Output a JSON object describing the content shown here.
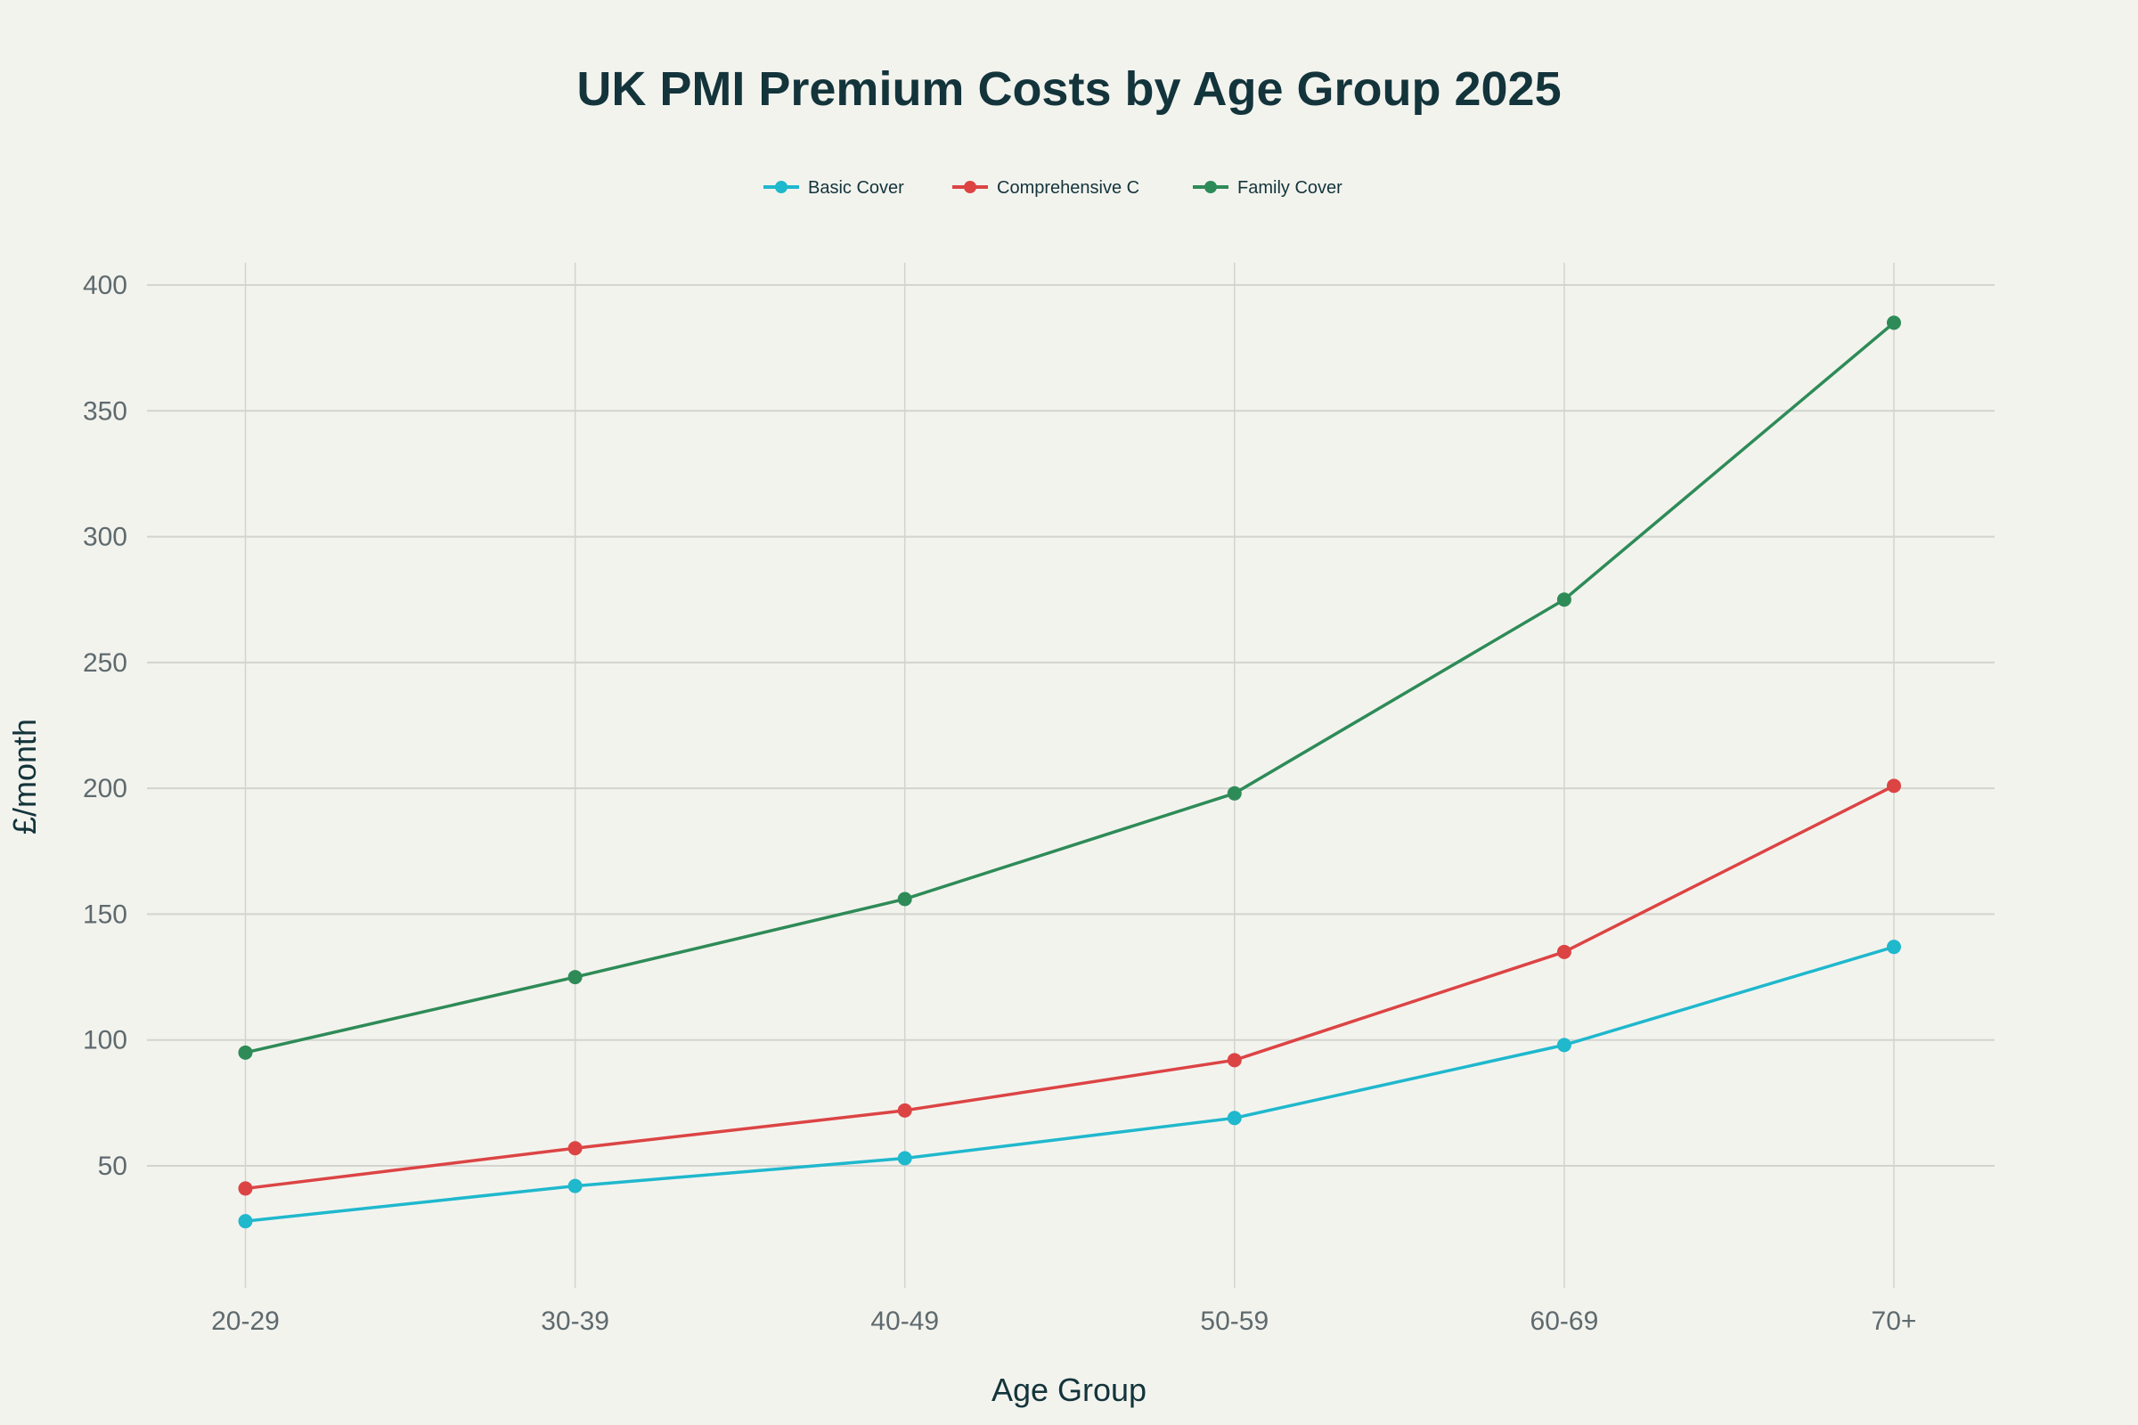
{
  "chart_data": {
    "type": "line",
    "title": "UK PMI Premium Costs by Age Group 2025",
    "xlabel": "Age Group",
    "ylabel": "£/month",
    "categories": [
      "20-29",
      "30-39",
      "40-49",
      "50-59",
      "60-69",
      "70+"
    ],
    "ylim": [
      0,
      409
    ],
    "yticks": [
      50,
      100,
      150,
      200,
      250,
      300,
      350,
      400
    ],
    "grid": true,
    "legend_position": "top-center",
    "series": [
      {
        "name": "Basic Cover",
        "color": "#1fb8cd",
        "values": [
          28,
          42,
          53,
          69,
          98,
          137
        ]
      },
      {
        "name": "Comprehensive C",
        "color": "#dc4444",
        "values": [
          41,
          57,
          72,
          92,
          135,
          201
        ]
      },
      {
        "name": "Family Cover",
        "color": "#2e8b57",
        "values": [
          95,
          125,
          156,
          198,
          275,
          385
        ]
      }
    ]
  }
}
